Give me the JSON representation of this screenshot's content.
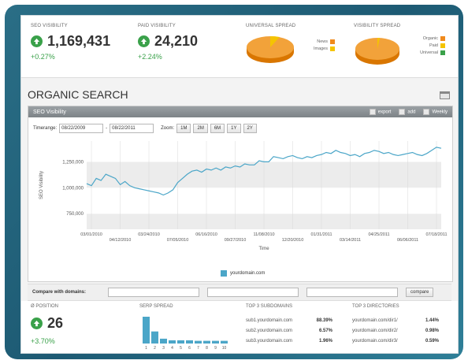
{
  "kpis": [
    {
      "title": "SEO VISIBILITY",
      "value": "1,169,431",
      "change": "+0.27%"
    },
    {
      "title": "PAID VISIBILITY",
      "value": "24,210",
      "change": "+2.24%"
    }
  ],
  "universal_spread": {
    "title": "UNIVERSAL SPREAD",
    "legend": [
      {
        "label": "News",
        "color": "#f08a1c"
      },
      {
        "label": "Images",
        "color": "#f5c400"
      }
    ]
  },
  "visibility_spread": {
    "title": "VISIBILITY SPREAD",
    "legend": [
      {
        "label": "Organic",
        "color": "#f08a1c"
      },
      {
        "label": "Paid",
        "color": "#f5c400"
      },
      {
        "label": "Universal",
        "color": "#3aa14a"
      }
    ]
  },
  "section": {
    "title": "ORGANIC SEARCH"
  },
  "panel": {
    "title": "SEO Visibility",
    "export": "export",
    "add": "add",
    "weekly": "Weekly",
    "timerange_label": "Timerange:",
    "from": "08/22/2009",
    "dash": "-",
    "to": "08/22/2011",
    "zoom_label": "Zoom:",
    "zoom": [
      "1M",
      "2M",
      "6M",
      "1Y",
      "2Y"
    ]
  },
  "chart_data": {
    "type": "line",
    "ylabel": "SEO Visibility",
    "xlabel": "Time",
    "ylim": [
      600000,
      1450000
    ],
    "yticks": [
      750000,
      1000000,
      1250000
    ],
    "ytick_labels": [
      "750,000",
      "1,000,000",
      "1,250,000"
    ],
    "xticks_top": [
      "03/01/2010",
      "03/24/2010",
      "06/16/2010",
      "11/08/2010",
      "01/31/2011",
      "04/25/2011",
      "07/18/2011"
    ],
    "xticks_bottom": [
      "04/12/2010",
      "07/05/2010",
      "09/27/2010",
      "12/20/2010",
      "03/14/2011",
      "06/06/2011"
    ],
    "series": [
      {
        "name": "yourdomain.com",
        "color": "#4ba6c8",
        "values": [
          1040000,
          1020000,
          1090000,
          1070000,
          1130000,
          1110000,
          1090000,
          1030000,
          1060000,
          1020000,
          1000000,
          990000,
          980000,
          970000,
          960000,
          950000,
          930000,
          950000,
          980000,
          1050000,
          1090000,
          1130000,
          1160000,
          1170000,
          1150000,
          1180000,
          1170000,
          1190000,
          1170000,
          1200000,
          1190000,
          1210000,
          1200000,
          1230000,
          1220000,
          1220000,
          1260000,
          1250000,
          1250000,
          1300000,
          1290000,
          1280000,
          1300000,
          1310000,
          1290000,
          1280000,
          1300000,
          1290000,
          1310000,
          1320000,
          1340000,
          1330000,
          1360000,
          1340000,
          1330000,
          1310000,
          1320000,
          1300000,
          1330000,
          1340000,
          1360000,
          1350000,
          1330000,
          1340000,
          1320000,
          1310000,
          1320000,
          1330000,
          1340000,
          1320000,
          1310000,
          1330000,
          1360000,
          1390000,
          1380000
        ]
      }
    ]
  },
  "compare": {
    "label": "Compare with domains:",
    "button": "compare"
  },
  "position": {
    "title": "Ø POSITION",
    "value": "26",
    "change": "+3.70%"
  },
  "serp_spread": {
    "title": "SERP SPREAD",
    "labels": [
      "1",
      "2",
      "3",
      "4",
      "5",
      "6",
      "7",
      "8",
      "9",
      "10"
    ],
    "values": [
      10,
      4.5,
      1.8,
      1.2,
      1.2,
      1.2,
      1.0,
      1.0,
      1.0,
      1.0
    ]
  },
  "top_subdomains": {
    "title": "TOP 3 SUBDOMAINS",
    "rows": [
      {
        "name": "sub1.yourdomain.com",
        "pct": "88.39%"
      },
      {
        "name": "sub2.yourdomain.com",
        "pct": "6.57%"
      },
      {
        "name": "sub3.yourdomain.com",
        "pct": "1.96%"
      }
    ]
  },
  "top_directories": {
    "title": "TOP 3 DIRECTORIES",
    "rows": [
      {
        "name": "yourdomain.com/dir1/",
        "pct": "1.44%"
      },
      {
        "name": "yourdomain.com/dir2/",
        "pct": "0.98%"
      },
      {
        "name": "yourdomain.com/dir3/",
        "pct": "0.59%"
      }
    ]
  }
}
